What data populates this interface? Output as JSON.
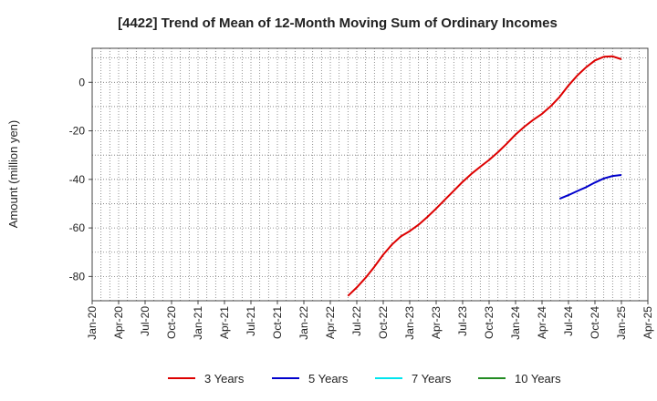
{
  "chart_data": {
    "type": "line",
    "title": "[4422]  Trend of Mean of 12-Month Moving Sum of Ordinary Incomes",
    "xlabel": "",
    "ylabel": "Amount (million yen)",
    "x_ticks": [
      "Jan-20",
      "Apr-20",
      "Jul-20",
      "Oct-20",
      "Jan-21",
      "Apr-21",
      "Jul-21",
      "Oct-21",
      "Jan-22",
      "Apr-22",
      "Jul-22",
      "Oct-22",
      "Jan-23",
      "Apr-23",
      "Jul-23",
      "Oct-23",
      "Jan-24",
      "Apr-24",
      "Jul-24",
      "Oct-24",
      "Jan-25",
      "Apr-25"
    ],
    "y_ticks": [
      0,
      -20,
      -40,
      -60,
      -80
    ],
    "ylim": [
      -90,
      14
    ],
    "xlim": [
      "2020-01",
      "2025-04"
    ],
    "grid": true,
    "legend_position": "bottom",
    "series": [
      {
        "name": "3 Years",
        "color": "#dd0000",
        "points": [
          [
            "2022-06",
            -88
          ],
          [
            "2022-07",
            -84.5
          ],
          [
            "2022-08",
            -80.5
          ],
          [
            "2022-09",
            -76
          ],
          [
            "2022-10",
            -71
          ],
          [
            "2022-11",
            -66.8
          ],
          [
            "2022-12",
            -63.5
          ],
          [
            "2023-01",
            -61.3
          ],
          [
            "2023-02",
            -58.7
          ],
          [
            "2023-03",
            -55.5
          ],
          [
            "2023-04",
            -52
          ],
          [
            "2023-05",
            -48.3
          ],
          [
            "2023-06",
            -44.7
          ],
          [
            "2023-07",
            -41
          ],
          [
            "2023-08",
            -37.7
          ],
          [
            "2023-09",
            -34.8
          ],
          [
            "2023-10",
            -32
          ],
          [
            "2023-11",
            -28.8
          ],
          [
            "2023-12",
            -25.3
          ],
          [
            "2024-01",
            -21.5
          ],
          [
            "2024-02",
            -18.3
          ],
          [
            "2024-03",
            -15.5
          ],
          [
            "2024-04",
            -13
          ],
          [
            "2024-05",
            -9.8
          ],
          [
            "2024-06",
            -6
          ],
          [
            "2024-07",
            -1.3
          ],
          [
            "2024-08",
            2.8
          ],
          [
            "2024-09",
            6.2
          ],
          [
            "2024-10",
            9
          ],
          [
            "2024-11",
            10.5
          ],
          [
            "2024-12",
            10.7
          ],
          [
            "2025-01",
            9.5
          ]
        ]
      },
      {
        "name": "5 Years",
        "color": "#0000cc",
        "points": [
          [
            "2024-06",
            -48
          ],
          [
            "2024-07",
            -46.5
          ],
          [
            "2024-08",
            -44.8
          ],
          [
            "2024-09",
            -43.2
          ],
          [
            "2024-10",
            -41.3
          ],
          [
            "2024-11",
            -39.6
          ],
          [
            "2024-12",
            -38.6
          ],
          [
            "2025-01",
            -38.2
          ]
        ]
      },
      {
        "name": "7 Years",
        "color": "#00e5ee",
        "points": []
      },
      {
        "name": "10 Years",
        "color": "#228b22",
        "points": []
      }
    ]
  }
}
